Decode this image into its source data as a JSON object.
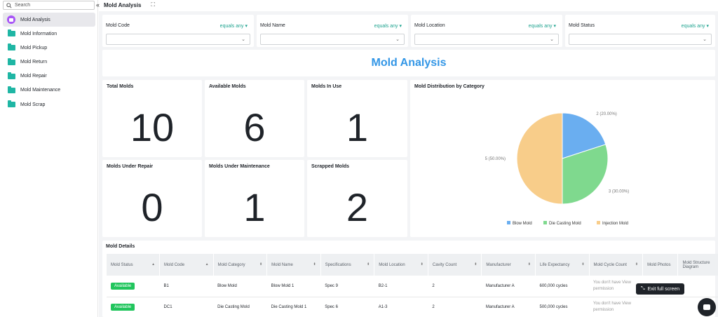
{
  "search": {
    "placeholder": "Search"
  },
  "sidebar": {
    "items": [
      {
        "label": "Mold Analysis"
      },
      {
        "label": "Mold Information"
      },
      {
        "label": "Mold Pickup"
      },
      {
        "label": "Mold Return"
      },
      {
        "label": "Mold Repair"
      },
      {
        "label": "Mold Maintenance"
      },
      {
        "label": "Mold Scrap"
      }
    ]
  },
  "header": {
    "title": "Mold Analysis"
  },
  "filters": [
    {
      "label": "Mold Code",
      "operator": "equals any"
    },
    {
      "label": "Mold Name",
      "operator": "equals any"
    },
    {
      "label": "Mold Location",
      "operator": "equals any"
    },
    {
      "label": "Mold Status",
      "operator": "equals any"
    }
  ],
  "banner": {
    "title": "Mold Analysis"
  },
  "stats": [
    {
      "label": "Total Molds",
      "value": "10"
    },
    {
      "label": "Available Molds",
      "value": "6"
    },
    {
      "label": "Molds In Use",
      "value": "1"
    },
    {
      "label": "Molds Under Repair",
      "value": "0"
    },
    {
      "label": "Molds Under Maintenance",
      "value": "1"
    },
    {
      "label": "Scrapped Molds",
      "value": "2"
    }
  ],
  "chart_data": {
    "type": "pie",
    "title": "Mold Distribution by Category",
    "series": [
      {
        "name": "Blow Mold",
        "value": 2,
        "label": "2 (20.00%)",
        "color": "#6aaef0"
      },
      {
        "name": "Die Casting Mold",
        "value": 3,
        "label": "3 (30.00%)",
        "color": "#7fd98e"
      },
      {
        "name": "Injection Mold",
        "value": 5,
        "label": "5 (50.00%)",
        "color": "#f8cd8a"
      }
    ],
    "legend": "bottom"
  },
  "details": {
    "title": "Mold Details",
    "columns": [
      "Mold Status",
      "Mold Code",
      "Mold Category",
      "Mold Name",
      "Specifications",
      "Mold Location",
      "Cavity Count",
      "Manufacturer",
      "Life Expectancy",
      "Mold Cycle Count",
      "Mold Photos",
      "Mold Structure Diagram"
    ],
    "rows": [
      [
        "Available",
        "B1",
        "Blow Mold",
        "Blow Mold 1",
        "Spec 9",
        "B2-1",
        "2",
        "Manufacturer A",
        "600,000 cycles",
        "You don't have View permission",
        "",
        ""
      ],
      [
        "Available",
        "DC1",
        "Die Casting Mold",
        "Die Casting Mold 1",
        "Spec 6",
        "A1-3",
        "2",
        "Manufacturer A",
        "500,000 cycles",
        "You don't have View permission",
        "",
        ""
      ]
    ]
  },
  "tooltip": {
    "label": "Exit full screen"
  },
  "colors": {
    "accent": "#1fa38f",
    "banner": "#3296e6",
    "badge": "#21c55d"
  }
}
